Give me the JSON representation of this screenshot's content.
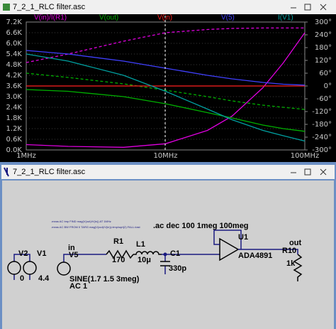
{
  "plot_window": {
    "title": "7_2_1_RLC filter.asc",
    "chart_data": {
      "type": "line",
      "xscale": "log",
      "grid": true,
      "x": [
        1000000,
        2000000,
        5000000,
        10000000,
        20000000,
        30000000,
        50000000,
        70000000,
        100000000
      ],
      "xlim": [
        1000000,
        100000000
      ],
      "xticks": [
        {
          "value": 1000000,
          "label": "1MHz"
        },
        {
          "value": 10000000,
          "label": "10MHz"
        },
        {
          "value": 100000000,
          "label": "100MHz"
        }
      ],
      "ylim": [
        0,
        7200
      ],
      "yticks": [
        {
          "value": 0,
          "label": "0.0K"
        },
        {
          "value": 600,
          "label": "0.6K"
        },
        {
          "value": 1200,
          "label": "1.2K"
        },
        {
          "value": 1800,
          "label": "1.8K"
        },
        {
          "value": 2400,
          "label": "2.4K"
        },
        {
          "value": 3000,
          "label": "3.0K"
        },
        {
          "value": 3600,
          "label": "3.6K"
        },
        {
          "value": 4200,
          "label": "4.2K"
        },
        {
          "value": 4800,
          "label": "4.8K"
        },
        {
          "value": 5400,
          "label": "5.4K"
        },
        {
          "value": 6000,
          "label": "6.0K"
        },
        {
          "value": 6600,
          "label": "6.6K"
        },
        {
          "value": 7200,
          "label": "7.2K"
        }
      ],
      "y2lim": [
        -300,
        300
      ],
      "y2ticks": [
        {
          "value": -300,
          "label": "-300°"
        },
        {
          "value": -240,
          "label": "-240°"
        },
        {
          "value": -180,
          "label": "-180°"
        },
        {
          "value": -120,
          "label": "-120°"
        },
        {
          "value": -60,
          "label": "-60°"
        },
        {
          "value": 0,
          "label": "0°"
        },
        {
          "value": 60,
          "label": "60°"
        },
        {
          "value": 120,
          "label": "120°"
        },
        {
          "value": 180,
          "label": "180°"
        },
        {
          "value": 240,
          "label": "240°"
        },
        {
          "value": 300,
          "label": "300°"
        }
      ],
      "series": [
        {
          "name": "V(in)/I(R1)",
          "color": "#e000e0",
          "values": [
            300,
            200,
            150,
            350,
            1100,
            1900,
            3500,
            4900,
            6600
          ],
          "phase": [
            110,
            150,
            210,
            250,
            265,
            270,
            272,
            272,
            272
          ]
        },
        {
          "name": "V(out)",
          "color": "#00b000",
          "values": [
            3400,
            3300,
            3000,
            2600,
            2100,
            1800,
            1400,
            1200,
            1050
          ],
          "phase": [
            60,
            40,
            10,
            -20,
            -50,
            -70,
            -90,
            -100,
            -110
          ]
        },
        {
          "name": "V(in)",
          "color": "#ff2020",
          "values": [
            3600,
            3600,
            3600,
            3600,
            3600,
            3600,
            3600,
            3600,
            3600
          ]
        },
        {
          "name": "V(5)",
          "color": "#4040ff",
          "values": [
            5600,
            5400,
            5000,
            4600,
            4200,
            4000,
            3800,
            3700,
            3650
          ]
        },
        {
          "name": "I(V1)",
          "color": "#00a0a0",
          "values": [
            5400,
            5000,
            4200,
            3300,
            2300,
            1700,
            1100,
            800,
            500
          ]
        }
      ]
    }
  },
  "schematic_window": {
    "title": "7_2_1_RLC filter.asc",
    "directives": [
      ".meas AC tmp FIND mag(V(out)/V(in)) AT 1MHz",
      ".meas AC BW FROM 0 TARG mag(V(out)/V(in))=tmp/sqrt(2) FALL=last",
      ".ac dec 100 1meg 100meg"
    ],
    "components": [
      {
        "name": "V2",
        "value": "0"
      },
      {
        "name": "V1",
        "value": "4.4"
      },
      {
        "name": "V5",
        "value": "SINE(1.7 1.5 3meg)",
        "ac": "AC 1"
      },
      {
        "name": "R1",
        "value": "170"
      },
      {
        "name": "L1",
        "value": "10μ"
      },
      {
        "name": "C1",
        "value": "330p"
      },
      {
        "name": "U1",
        "value": "ADA4891"
      },
      {
        "name": "R10",
        "value": "1k"
      }
    ],
    "nets": [
      "in",
      "out"
    ]
  }
}
